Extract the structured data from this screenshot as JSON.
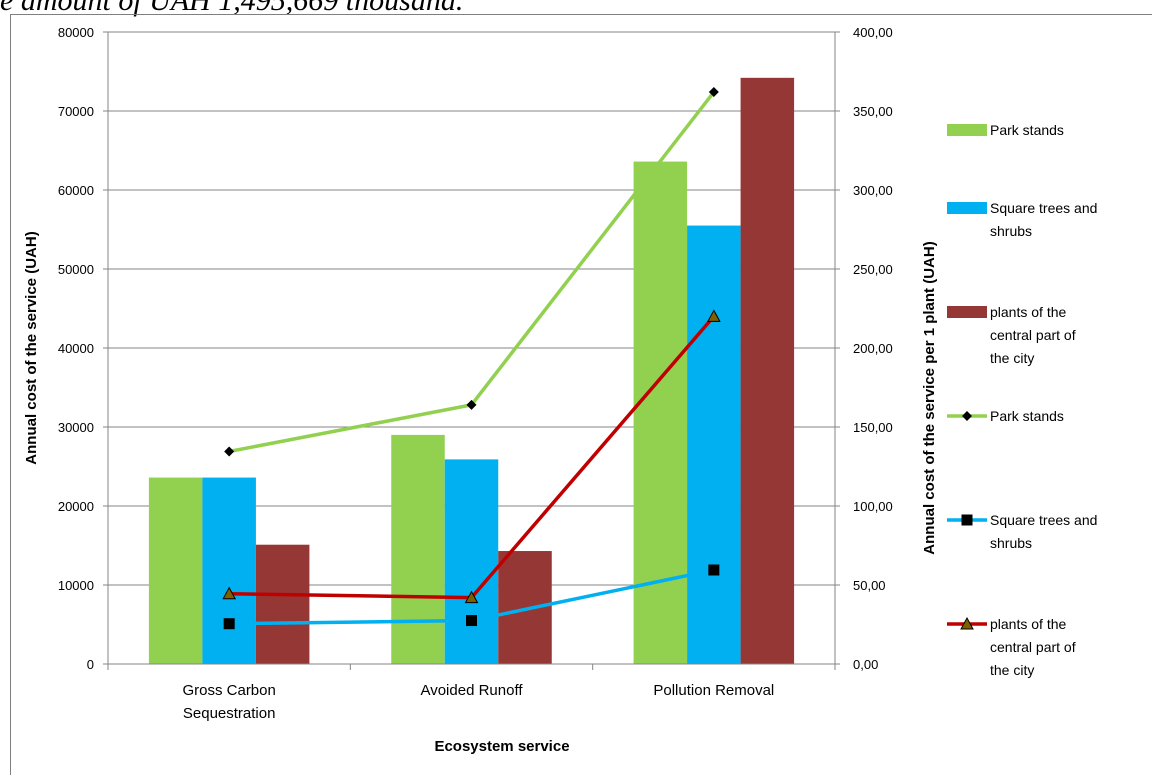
{
  "header_fragment": "e amount of UAH 1,495,669 thousand.",
  "chart_data": {
    "type": "bar",
    "categories": [
      "Gross Carbon Sequestration",
      "Avoided Runoff",
      "Pollution Removal"
    ],
    "category_lines": [
      [
        "Gross Carbon",
        "Sequestration"
      ],
      [
        "Avoided Runoff"
      ],
      [
        "Pollution Removal"
      ]
    ],
    "xlabel": "Ecosystem service",
    "ylabel": "Annual cost of the service (UAH)",
    "y2label": "Annual cost of the service per 1 plant (UAH)",
    "ylim": [
      0,
      80000
    ],
    "y2lim": [
      0,
      400
    ],
    "yticks": [
      "0",
      "10000",
      "20000",
      "30000",
      "40000",
      "50000",
      "60000",
      "70000",
      "80000"
    ],
    "y2ticks": [
      "0,00",
      "50,00",
      "100,00",
      "150,00",
      "200,00",
      "250,00",
      "300,00",
      "350,00",
      "400,00"
    ],
    "grid": true,
    "legend_position": "right",
    "series": [
      {
        "name": "Park stands",
        "kind": "bar",
        "axis": "left",
        "color": "#92d050",
        "values": [
          23600,
          29000,
          63600
        ]
      },
      {
        "name": "Square trees and shrubs",
        "kind": "bar",
        "axis": "left",
        "color": "#00b0f0",
        "values": [
          23600,
          25900,
          55500
        ]
      },
      {
        "name": "plants of the central part of the city",
        "kind": "bar",
        "axis": "left",
        "color": "#953735",
        "values": [
          15100,
          14300,
          74200
        ]
      },
      {
        "name": "Park stands",
        "kind": "line",
        "axis": "right",
        "color": "#92d050",
        "marker": "diamond",
        "marker_color": "#000000",
        "values": [
          134.5,
          164,
          362
        ]
      },
      {
        "name": "Square trees and shrubs",
        "kind": "line",
        "axis": "right",
        "color": "#00b0f0",
        "marker": "square",
        "marker_color": "#000000",
        "values": [
          25.5,
          27.5,
          59.5
        ]
      },
      {
        "name": "plants of the central part of the city",
        "kind": "line",
        "axis": "right",
        "color": "#c00000",
        "marker": "triangle",
        "marker_color": "#000000",
        "values": [
          44.5,
          42,
          220
        ]
      }
    ],
    "legend_lines": [
      [
        "Park stands"
      ],
      [
        "Square trees and",
        "shrubs"
      ],
      [
        "plants of the",
        "central part of",
        "the city"
      ],
      [
        "Park stands"
      ],
      [
        "Square trees and",
        "shrubs"
      ],
      [
        "plants of the",
        "central part of",
        "the city"
      ]
    ]
  }
}
